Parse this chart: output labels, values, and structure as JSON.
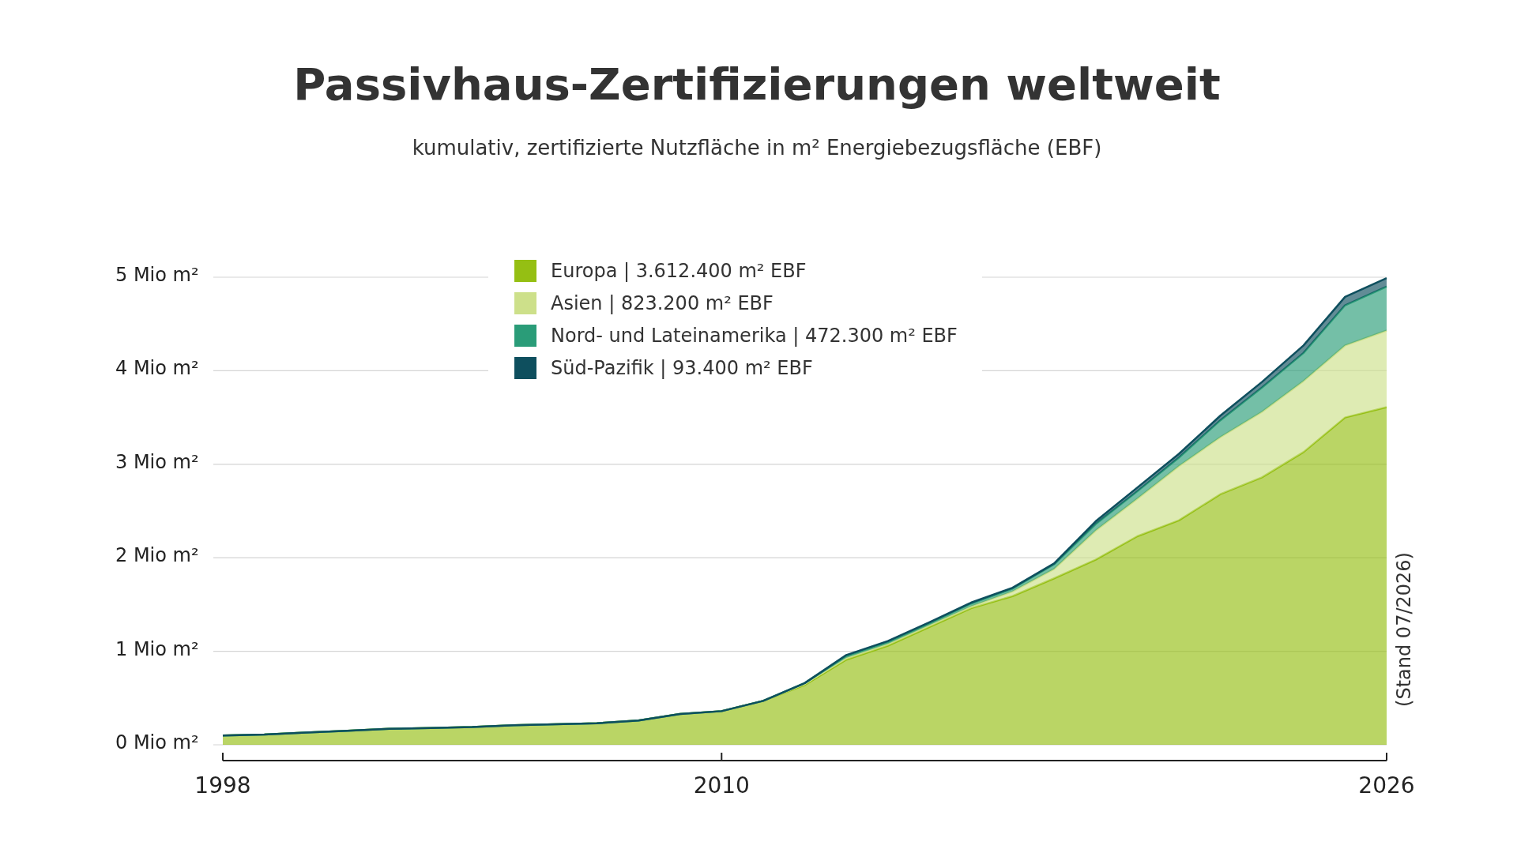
{
  "chart_data": {
    "type": "area",
    "stacked": true,
    "title": "Passivhaus-Zertifizierungen weltweit",
    "subtitle": "kumulativ, zertifizierte Nutzfläche in m² Energiebezugsfläche (EBF)",
    "x": [
      1998,
      1999,
      2000,
      2001,
      2002,
      2003,
      2004,
      2005,
      2006,
      2007,
      2008,
      2009,
      2010,
      2011,
      2012,
      2013,
      2014,
      2015,
      2016,
      2017,
      2018,
      2019,
      2020,
      2021,
      2022,
      2023,
      2024,
      2025,
      2026
    ],
    "series": [
      {
        "name": "Europa | 3.612.400 m² EBF",
        "color": "#95bf13",
        "values": [
          0.1,
          0.11,
          0.13,
          0.15,
          0.17,
          0.18,
          0.19,
          0.21,
          0.22,
          0.23,
          0.26,
          0.33,
          0.36,
          0.47,
          0.64,
          0.91,
          1.06,
          1.26,
          1.46,
          1.59,
          1.78,
          1.98,
          2.23,
          2.4,
          2.68,
          2.86,
          3.13,
          3.5,
          3.61
        ]
      },
      {
        "name": "Asien | 823.200 m² EBF",
        "color": "#cde08a",
        "values": [
          0,
          0,
          0,
          0,
          0,
          0,
          0,
          0,
          0,
          0,
          0,
          0,
          0,
          0,
          0.01,
          0.02,
          0.02,
          0.02,
          0.02,
          0.05,
          0.1,
          0.31,
          0.4,
          0.58,
          0.61,
          0.7,
          0.76,
          0.77,
          0.82
        ]
      },
      {
        "name": "Nord- und Lateinamerika | 472.300 m² EBF",
        "color": "#2a9c78",
        "values": [
          0,
          0,
          0,
          0,
          0,
          0,
          0,
          0,
          0,
          0,
          0,
          0,
          0,
          0,
          0.01,
          0.02,
          0.02,
          0.02,
          0.03,
          0.03,
          0.05,
          0.07,
          0.08,
          0.09,
          0.18,
          0.26,
          0.3,
          0.43,
          0.47
        ]
      },
      {
        "name": "Süd-Pazifik | 93.400 m² EBF",
        "color": "#0e4f5e",
        "values": [
          0,
          0,
          0,
          0,
          0,
          0,
          0,
          0,
          0,
          0,
          0,
          0,
          0,
          0,
          0,
          0.01,
          0.01,
          0.01,
          0.01,
          0.01,
          0.01,
          0.03,
          0.04,
          0.04,
          0.05,
          0.06,
          0.08,
          0.09,
          0.09
        ]
      }
    ],
    "xlim": [
      1998,
      2026
    ],
    "xticks": [
      1998,
      2010,
      2026
    ],
    "ylim": [
      0,
      5
    ],
    "yticks": [
      {
        "value": 0,
        "label": "0 Mio m²"
      },
      {
        "value": 1,
        "label": "1 Mio m²"
      },
      {
        "value": 2,
        "label": "2 Mio m²"
      },
      {
        "value": 3,
        "label": "3 Mio m²"
      },
      {
        "value": 4,
        "label": "4 Mio m²"
      },
      {
        "value": 5,
        "label": "5 Mio m²"
      }
    ],
    "grid": "y",
    "legend": "top",
    "annotations": [
      "(Stand 07/2026)"
    ]
  }
}
